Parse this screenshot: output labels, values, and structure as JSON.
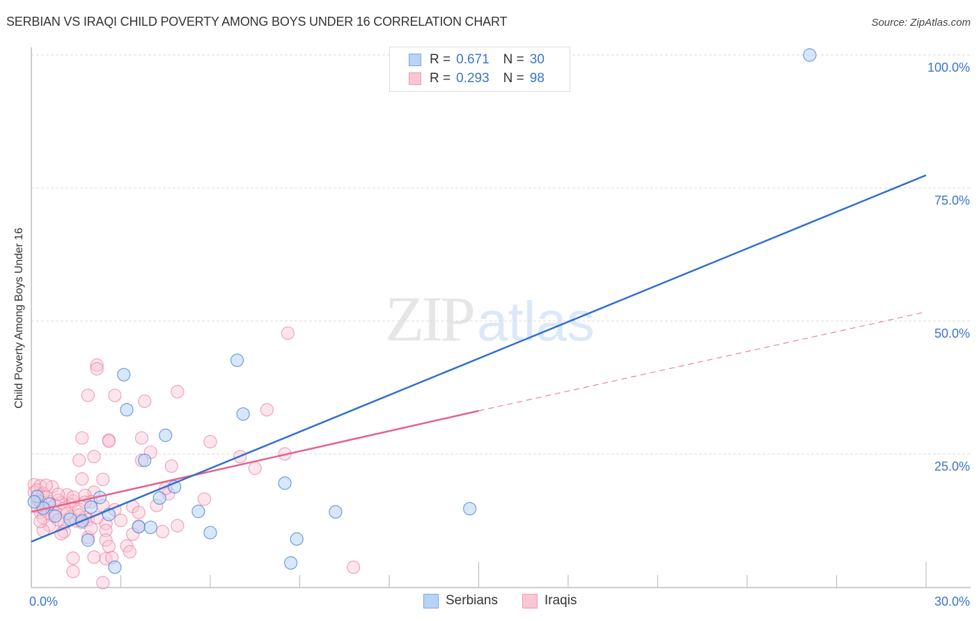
{
  "header": {
    "title": "SERBIAN VS IRAQI CHILD POVERTY AMONG BOYS UNDER 16 CORRELATION CHART",
    "source": "Source: ZipAtlas.com"
  },
  "watermark": {
    "zip": "ZIP",
    "atlas": "atlas"
  },
  "legend_top": {
    "rows": [
      {
        "r_label": "R =",
        "r_value": "0.671",
        "n_label": "N =",
        "n_value": "30",
        "color": "#b8d3f5",
        "border": "#7aa7e0"
      },
      {
        "r_label": "R =",
        "r_value": "0.293",
        "n_label": "N =",
        "n_value": "98",
        "color": "#fbc6d4",
        "border": "#ef9ab3"
      }
    ]
  },
  "legend_bottom": {
    "items": [
      {
        "label": "Serbians",
        "color": "#b8d3f5",
        "border": "#7aa7e0"
      },
      {
        "label": "Iraqis",
        "color": "#fbc6d4",
        "border": "#ef9ab3"
      }
    ]
  },
  "colors": {
    "serbians_line": "#2f6fd1",
    "iraqis_line": "#e5608b",
    "tick_label": "#3a74c9",
    "grid": "#d9d9d9",
    "axis": "#bdbdbd"
  },
  "chart_data": {
    "type": "scatter",
    "title": "SERBIAN VS IRAQI CHILD POVERTY AMONG BOYS UNDER 16 CORRELATION CHART",
    "xlabel": "",
    "ylabel": "Child Poverty Among Boys Under 16",
    "xlim": [
      0,
      30
    ],
    "ylim": [
      0,
      100
    ],
    "x_tick_labels": [
      "0.0%",
      "30.0%"
    ],
    "y_tick_labels": [
      "100.0%",
      "75.0%",
      "50.0%",
      "25.0%"
    ],
    "y_ticks": [
      100,
      75,
      50,
      25
    ],
    "grid": true,
    "legend_position": "top-center and bottom",
    "series": [
      {
        "name": "Serbians",
        "R": 0.671,
        "N": 30,
        "trend": {
          "x0": 0,
          "y0": 8.5,
          "x1": 30,
          "y1": 77.4,
          "style": "solid"
        },
        "points": [
          [
            26.1,
            100.0
          ],
          [
            6.9,
            42.6
          ],
          [
            3.1,
            39.9
          ],
          [
            7.1,
            32.5
          ],
          [
            3.2,
            33.3
          ],
          [
            4.5,
            28.5
          ],
          [
            3.8,
            23.8
          ],
          [
            4.8,
            18.8
          ],
          [
            8.5,
            19.5
          ],
          [
            4.3,
            16.7
          ],
          [
            2.3,
            16.8
          ],
          [
            5.6,
            14.2
          ],
          [
            10.2,
            14.1
          ],
          [
            14.7,
            14.7
          ],
          [
            2.6,
            13.6
          ],
          [
            2.0,
            15.0
          ],
          [
            1.3,
            12.7
          ],
          [
            0.8,
            13.3
          ],
          [
            0.6,
            15.6
          ],
          [
            0.2,
            17.0
          ],
          [
            0.4,
            14.8
          ],
          [
            1.7,
            12.4
          ],
          [
            3.6,
            11.3
          ],
          [
            4.0,
            11.2
          ],
          [
            6.0,
            10.2
          ],
          [
            1.9,
            8.8
          ],
          [
            8.9,
            9.0
          ],
          [
            2.8,
            3.7
          ],
          [
            8.7,
            4.5
          ],
          [
            0.1,
            16.0
          ]
        ]
      },
      {
        "name": "Iraqis",
        "R": 0.293,
        "N": 98,
        "trend": {
          "x0": 0,
          "y0": 14.1,
          "x1": 15.0,
          "y1": 33.1,
          "style": "solid",
          "extension": {
            "x1": 30,
            "y1": 51.7,
            "style": "dashed"
          }
        },
        "points": [
          [
            8.6,
            47.7
          ],
          [
            2.2,
            41.7
          ],
          [
            2.2,
            41.0
          ],
          [
            4.9,
            36.7
          ],
          [
            1.9,
            36.0
          ],
          [
            2.8,
            36.0
          ],
          [
            3.8,
            34.9
          ],
          [
            7.9,
            33.3
          ],
          [
            1.7,
            28.0
          ],
          [
            2.6,
            27.6
          ],
          [
            2.6,
            27.4
          ],
          [
            3.7,
            28.0
          ],
          [
            6.0,
            27.3
          ],
          [
            4.0,
            25.3
          ],
          [
            2.1,
            24.5
          ],
          [
            1.6,
            23.8
          ],
          [
            3.7,
            23.8
          ],
          [
            7.0,
            24.5
          ],
          [
            8.5,
            25.0
          ],
          [
            4.7,
            22.7
          ],
          [
            7.5,
            22.3
          ],
          [
            1.7,
            20.3
          ],
          [
            2.4,
            20.2
          ],
          [
            0.1,
            19.2
          ],
          [
            0.3,
            19.0
          ],
          [
            0.7,
            18.8
          ],
          [
            2.1,
            17.8
          ],
          [
            4.6,
            17.5
          ],
          [
            4.5,
            18.5
          ],
          [
            1.2,
            17.3
          ],
          [
            1.8,
            17.2
          ],
          [
            0.4,
            17.3
          ],
          [
            0.9,
            16.3
          ],
          [
            1.4,
            16.1
          ],
          [
            1.3,
            15.5
          ],
          [
            0.6,
            16.0
          ],
          [
            0.2,
            16.4
          ],
          [
            0.8,
            15.4
          ],
          [
            1.0,
            15.8
          ],
          [
            2.0,
            16.0
          ],
          [
            5.8,
            16.5
          ],
          [
            4.2,
            15.3
          ],
          [
            3.4,
            15.1
          ],
          [
            1.1,
            14.8
          ],
          [
            0.5,
            14.5
          ],
          [
            0.3,
            14.0
          ],
          [
            0.2,
            15.1
          ],
          [
            1.6,
            14.6
          ],
          [
            0.7,
            13.4
          ],
          [
            1.3,
            13.1
          ],
          [
            1.8,
            13.1
          ],
          [
            2.8,
            14.5
          ],
          [
            3.6,
            14.0
          ],
          [
            0.4,
            13.0
          ],
          [
            1.5,
            12.4
          ],
          [
            1.7,
            12.1
          ],
          [
            1.9,
            12.6
          ],
          [
            2.5,
            11.9
          ],
          [
            1.1,
            11.8
          ],
          [
            0.6,
            11.6
          ],
          [
            3.6,
            11.4
          ],
          [
            4.9,
            11.5
          ],
          [
            0.4,
            10.6
          ],
          [
            1.1,
            10.4
          ],
          [
            1.0,
            10.0
          ],
          [
            2.5,
            10.6
          ],
          [
            3.4,
            9.9
          ],
          [
            4.4,
            10.4
          ],
          [
            1.9,
            9.3
          ],
          [
            2.5,
            8.8
          ],
          [
            2.6,
            7.6
          ],
          [
            3.2,
            7.7
          ],
          [
            3.3,
            6.6
          ],
          [
            2.1,
            5.6
          ],
          [
            2.5,
            5.3
          ],
          [
            1.4,
            5.4
          ],
          [
            2.7,
            5.5
          ],
          [
            10.8,
            3.7
          ],
          [
            1.4,
            2.9
          ],
          [
            2.4,
            0.8
          ],
          [
            0.1,
            17.8
          ],
          [
            0.2,
            18.2
          ],
          [
            0.4,
            17.6
          ],
          [
            0.5,
            17.0
          ],
          [
            0.3,
            16.0
          ],
          [
            0.8,
            14.0
          ],
          [
            1.2,
            13.8
          ],
          [
            0.9,
            12.6
          ],
          [
            1.6,
            13.5
          ],
          [
            2.2,
            13.0
          ],
          [
            0.5,
            19.1
          ],
          [
            0.9,
            17.4
          ],
          [
            1.4,
            16.9
          ],
          [
            1.8,
            15.9
          ],
          [
            0.3,
            12.3
          ],
          [
            2.0,
            11.0
          ],
          [
            3.0,
            12.5
          ],
          [
            2.4,
            15.3
          ]
        ]
      }
    ]
  }
}
